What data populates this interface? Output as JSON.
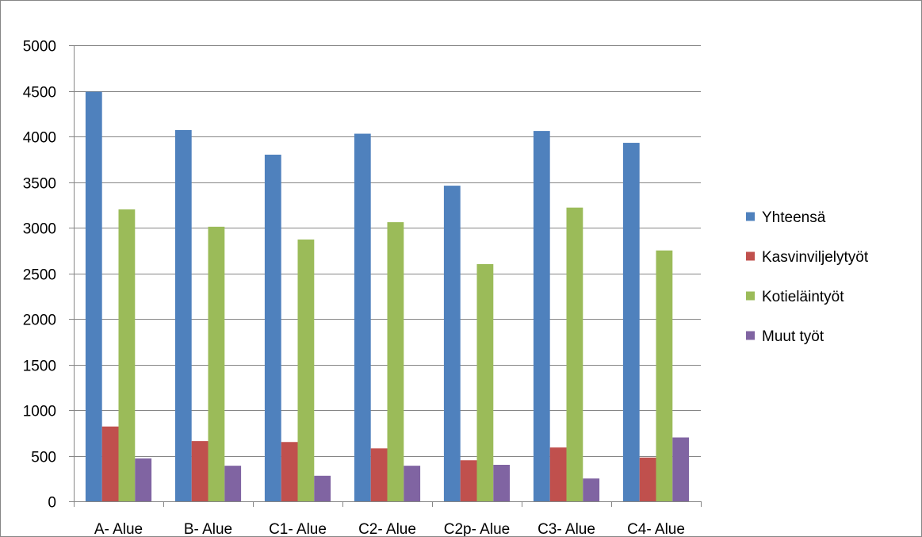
{
  "chart_data": {
    "type": "bar",
    "categories": [
      "A- Alue",
      "B- Alue",
      "C1- Alue",
      "C2- Alue",
      "C2p- Alue",
      "C3- Alue",
      "C4- Alue"
    ],
    "series": [
      {
        "name": "Yhteensä",
        "color": "#4F81BD",
        "values": [
          4490,
          4070,
          3800,
          4030,
          3460,
          4060,
          3930
        ]
      },
      {
        "name": "Kasvinviljelytyöt",
        "color": "#C0504D",
        "values": [
          820,
          660,
          650,
          580,
          450,
          590,
          480
        ]
      },
      {
        "name": "Kotieläintyöt",
        "color": "#9BBB59",
        "values": [
          3200,
          3010,
          2870,
          3060,
          2600,
          3220,
          2750
        ]
      },
      {
        "name": "Muut työt",
        "color": "#8064A2",
        "values": [
          470,
          390,
          280,
          390,
          400,
          250,
          700
        ]
      }
    ],
    "ylim": [
      0,
      5000
    ],
    "yticks": [
      0,
      500,
      1000,
      1500,
      2000,
      2500,
      3000,
      3500,
      4000,
      4500,
      5000
    ],
    "grid": true,
    "legend_position": "right"
  }
}
